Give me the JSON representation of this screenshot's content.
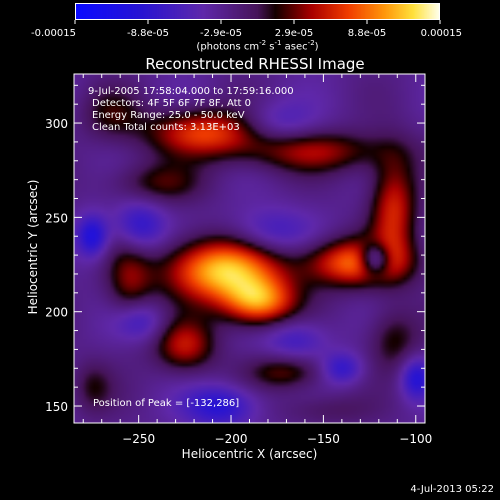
{
  "chart_data": {
    "type": "heatmap",
    "title": "Reconstructed RHESSI Image",
    "xlabel": "Heliocentric X (arcsec)",
    "ylabel": "Heliocentric Y (arcsec)",
    "xlim": [
      -285,
      -95
    ],
    "ylim": [
      141,
      326
    ],
    "xticks": [
      -250,
      -200,
      -150,
      -100
    ],
    "yticks": [
      150,
      200,
      250,
      300
    ],
    "colorbar": {
      "range": [
        -0.00015,
        0.00015
      ],
      "ticks": [
        "-0.00015",
        "-8.8e-05",
        "-2.9e-05",
        "2.9e-05",
        "8.8e-05",
        "0.00015"
      ],
      "units": "(photons cm",
      "units_exp1": "-2",
      "units_mid": " s",
      "units_exp2": "-1",
      "units_mid2": " asec",
      "units_exp3": "-2",
      "units_end": ")"
    },
    "annotations": {
      "time": "9-Jul-2005 17:58:04.000 to 17:59:16.000",
      "detectors": "Detectors: 4F 5F 6F 7F 8F, Att 0",
      "energy": "Energy Range: 25.0 - 50.0 keV",
      "clean": "Clean      Total counts: 3.13E+03",
      "peak": "Position of Peak = [-132,286]"
    },
    "footer_timestamp": "4-Jul-2013 05:22",
    "peak": [
      -132,
      286
    ],
    "blobs": [
      {
        "x": -205,
        "y": 222,
        "v": 0.00015,
        "sx": 22,
        "sy": 12
      },
      {
        "x": -185,
        "y": 205,
        "v": 0.00012,
        "sx": 14,
        "sy": 9
      },
      {
        "x": -132,
        "y": 226,
        "v": 0.00012,
        "sx": 20,
        "sy": 9
      },
      {
        "x": -112,
        "y": 255,
        "v": 9e-05,
        "sx": 9,
        "sy": 20
      },
      {
        "x": -215,
        "y": 295,
        "v": 0.0001,
        "sx": 22,
        "sy": 9
      },
      {
        "x": -155,
        "y": 285,
        "v": 7e-05,
        "sx": 30,
        "sy": 8
      },
      {
        "x": -240,
        "y": 268,
        "v": 5e-05,
        "sx": 18,
        "sy": 8
      },
      {
        "x": -255,
        "y": 215,
        "v": 6e-05,
        "sx": 9,
        "sy": 18
      },
      {
        "x": -225,
        "y": 182,
        "v": 8e-05,
        "sx": 12,
        "sy": 10
      },
      {
        "x": -170,
        "y": 168,
        "v": 6e-05,
        "sx": 15,
        "sy": 7
      },
      {
        "x": -265,
        "y": 305,
        "v": 4e-05,
        "sx": 12,
        "sy": 10
      },
      {
        "x": -112,
        "y": 185,
        "v": 5e-05,
        "sx": 10,
        "sy": 12
      },
      {
        "x": -275,
        "y": 160,
        "v": 4e-05,
        "sx": 8,
        "sy": 10
      },
      {
        "x": -150,
        "y": 148,
        "v": 3e-05,
        "sx": 18,
        "sy": 6
      },
      {
        "x": -122,
        "y": 228,
        "v": -0.00012,
        "sx": 6,
        "sy": 6
      },
      {
        "x": -250,
        "y": 245,
        "v": -7e-05,
        "sx": 10,
        "sy": 10
      },
      {
        "x": -275,
        "y": 240,
        "v": -8e-05,
        "sx": 6,
        "sy": 8
      },
      {
        "x": -205,
        "y": 150,
        "v": -7e-05,
        "sx": 14,
        "sy": 8
      },
      {
        "x": -180,
        "y": 242,
        "v": -5e-05,
        "sx": 16,
        "sy": 9
      },
      {
        "x": -250,
        "y": 195,
        "v": -6e-05,
        "sx": 10,
        "sy": 8
      },
      {
        "x": -165,
        "y": 185,
        "v": -5e-05,
        "sx": 12,
        "sy": 8
      },
      {
        "x": -100,
        "y": 165,
        "v": -7e-05,
        "sx": 6,
        "sy": 8
      },
      {
        "x": -175,
        "y": 300,
        "v": -4e-05,
        "sx": 14,
        "sy": 8
      },
      {
        "x": -140,
        "y": 170,
        "v": -6e-05,
        "sx": 8,
        "sy": 6
      }
    ],
    "background_level": -3e-05
  }
}
